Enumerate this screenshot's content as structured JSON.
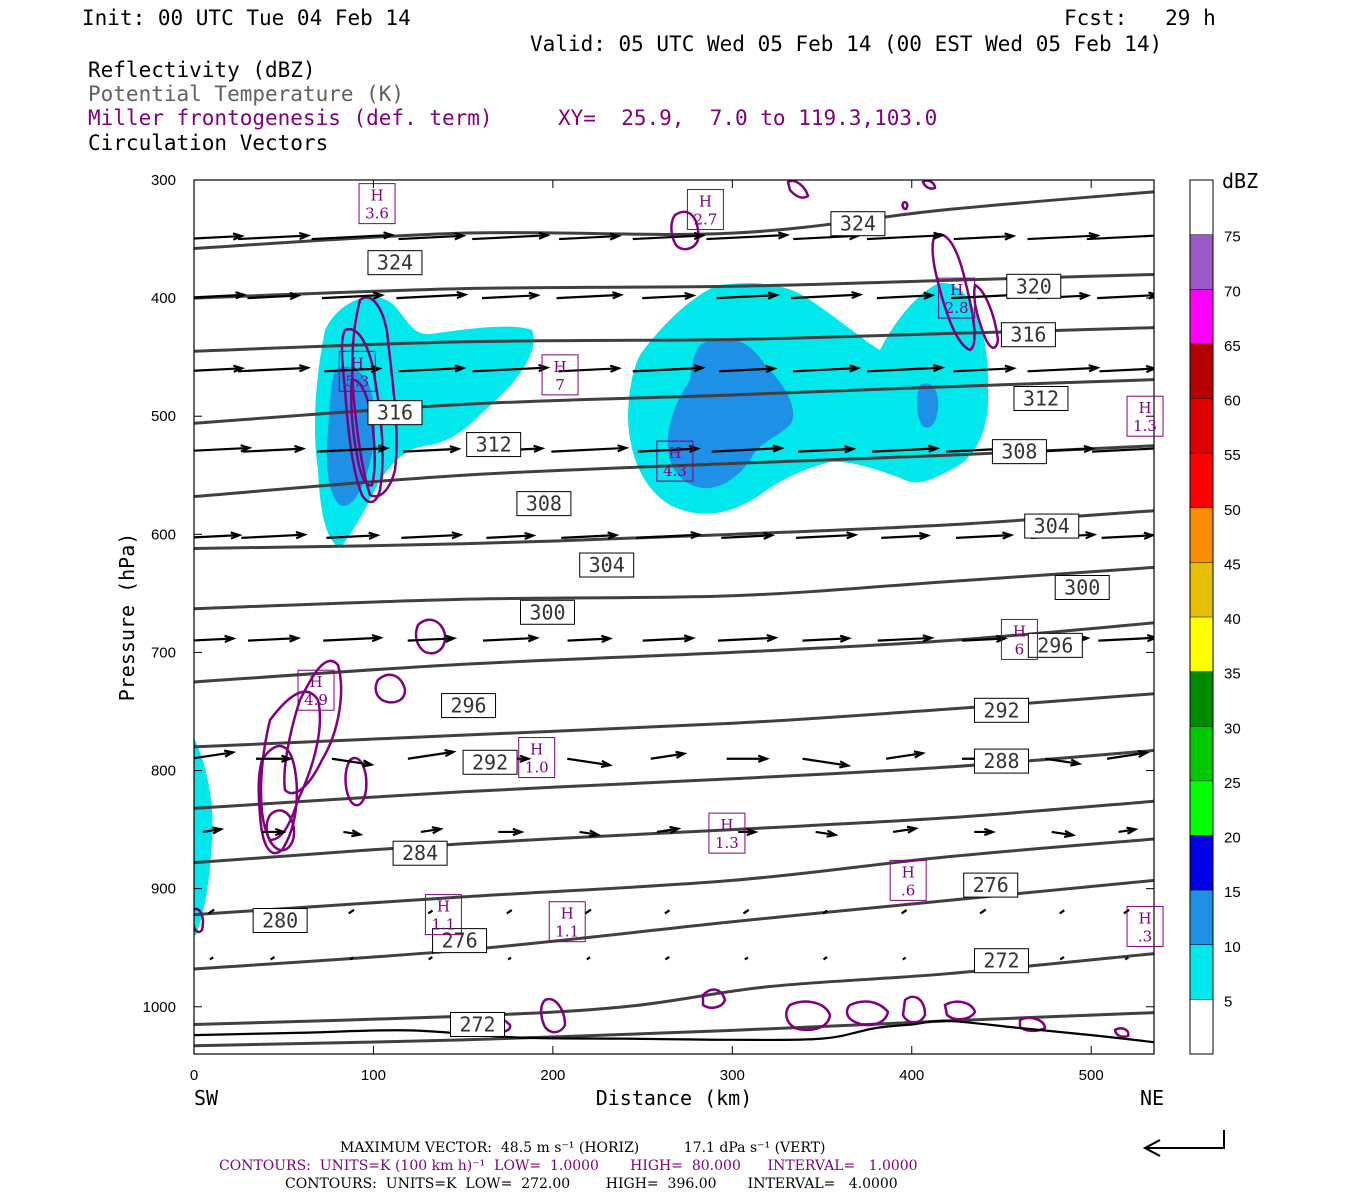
{
  "header": {
    "init": "Init: 00 UTC Tue 04 Feb 14",
    "fcst": "Fcst:   29 h",
    "valid": "Valid: 05 UTC Wed 05 Feb 14 (00 EST Wed 05 Feb 14)",
    "field1": "Reflectivity (dBZ)",
    "field2": "Potential Temperature (K)",
    "field3": "Miller frontogenesis (def. term)",
    "xy": "XY=  25.9,  7.0 to 119.3,103.0",
    "field4": "Circulation Vectors"
  },
  "colors": {
    "theta": "#404040",
    "fronto": "#800080",
    "field2_text": "#606060",
    "refl_5": "#00e8ec",
    "refl_10": "#1e90e6"
  },
  "footer": {
    "maxvec": "MAXIMUM VECTOR:  48.5 m s⁻¹ (HORIZ)          17.1 dPa s⁻¹ (VERT)",
    "contours1": "CONTOURS:  UNITS=K (100 km h)⁻¹  LOW=  1.0000       HIGH=  80.000      INTERVAL=   1.0000",
    "contours2": "CONTOURS:  UNITS=K  LOW=  272.00        HIGH=  396.00       INTERVAL=   4.0000"
  },
  "chart_data": {
    "type": "cross-section",
    "xlabel": "Distance (km)",
    "ylabel": "Pressure (hPa)",
    "xlim": [
      0,
      535
    ],
    "ylim": [
      1040,
      300
    ],
    "xticks": [
      0,
      100,
      200,
      300,
      400,
      500
    ],
    "yticks": [
      300,
      400,
      500,
      600,
      700,
      800,
      900,
      1000
    ],
    "left_end_label": "SW",
    "right_end_label": "NE",
    "colorbar": {
      "units": "dBZ",
      "levels": [
        5,
        10,
        15,
        20,
        25,
        30,
        35,
        40,
        45,
        50,
        55,
        60,
        65,
        70,
        75
      ],
      "colors": [
        "#ffffff",
        "#00e8ec",
        "#1e90e6",
        "#0000e6",
        "#00ff00",
        "#00c800",
        "#008c00",
        "#ffff00",
        "#e6be00",
        "#ff8c00",
        "#ff0000",
        "#dc0000",
        "#b40000",
        "#ff00ff",
        "#9a5ac8",
        "#ffffff"
      ]
    },
    "theta_contours": [
      {
        "value": 272,
        "points": [
          [
            0,
            1033
          ],
          [
            150,
            1028
          ],
          [
            300,
            1020
          ],
          [
            420,
            1012
          ],
          [
            535,
            1005
          ]
        ]
      },
      {
        "value": 272,
        "points": [
          [
            0,
            1015
          ],
          [
            150,
            1008
          ],
          [
            240,
            1000
          ],
          [
            320,
            983
          ],
          [
            420,
            972
          ],
          [
            535,
            955
          ]
        ]
      },
      {
        "value": 276,
        "points": [
          [
            0,
            968
          ],
          [
            150,
            952
          ],
          [
            300,
            928
          ],
          [
            400,
            913
          ],
          [
            535,
            893
          ]
        ]
      },
      {
        "value": 280,
        "points": [
          [
            0,
            922
          ],
          [
            150,
            907
          ],
          [
            300,
            893
          ],
          [
            420,
            873
          ],
          [
            535,
            858
          ]
        ]
      },
      {
        "value": 284,
        "points": [
          [
            0,
            878
          ],
          [
            150,
            862
          ],
          [
            300,
            850
          ],
          [
            420,
            840
          ],
          [
            535,
            826
          ]
        ]
      },
      {
        "value": 288,
        "points": [
          [
            0,
            832
          ],
          [
            150,
            818
          ],
          [
            300,
            807
          ],
          [
            420,
            797
          ],
          [
            535,
            783
          ]
        ]
      },
      {
        "value": 292,
        "points": [
          [
            0,
            780
          ],
          [
            150,
            770
          ],
          [
            300,
            760
          ],
          [
            420,
            748
          ],
          [
            535,
            735
          ]
        ]
      },
      {
        "value": 296,
        "points": [
          [
            0,
            725
          ],
          [
            150,
            710
          ],
          [
            300,
            700
          ],
          [
            420,
            690
          ],
          [
            535,
            675
          ]
        ]
      },
      {
        "value": 300,
        "points": [
          [
            0,
            663
          ],
          [
            150,
            655
          ],
          [
            300,
            652
          ],
          [
            420,
            640
          ],
          [
            535,
            628
          ]
        ]
      },
      {
        "value": 304,
        "points": [
          [
            0,
            612
          ],
          [
            150,
            608
          ],
          [
            300,
            600
          ],
          [
            420,
            592
          ],
          [
            535,
            580
          ]
        ]
      },
      {
        "value": 308,
        "points": [
          [
            0,
            568
          ],
          [
            150,
            550
          ],
          [
            300,
            540
          ],
          [
            420,
            533
          ],
          [
            535,
            525
          ]
        ]
      },
      {
        "value": 312,
        "points": [
          [
            0,
            506
          ],
          [
            150,
            490
          ],
          [
            300,
            482
          ],
          [
            420,
            475
          ],
          [
            535,
            469
          ]
        ]
      },
      {
        "value": 316,
        "points": [
          [
            0,
            445
          ],
          [
            150,
            437
          ],
          [
            300,
            435
          ],
          [
            420,
            430
          ],
          [
            535,
            425
          ]
        ]
      },
      {
        "value": 320,
        "points": [
          [
            0,
            400
          ],
          [
            150,
            392
          ],
          [
            300,
            390
          ],
          [
            420,
            385
          ],
          [
            535,
            380
          ]
        ]
      },
      {
        "value": 324,
        "points": [
          [
            0,
            358
          ],
          [
            150,
            345
          ],
          [
            300,
            345
          ],
          [
            420,
            325
          ],
          [
            535,
            310
          ]
        ]
      }
    ],
    "theta_labels": [
      {
        "text": "324",
        "x": 112,
        "p": 370
      },
      {
        "text": "324",
        "x": 370,
        "p": 337
      },
      {
        "text": "320",
        "x": 468,
        "p": 390
      },
      {
        "text": "316",
        "x": 465,
        "p": 431
      },
      {
        "text": "316",
        "x": 112,
        "p": 497
      },
      {
        "text": "312",
        "x": 472,
        "p": 485
      },
      {
        "text": "312",
        "x": 167,
        "p": 524
      },
      {
        "text": "308",
        "x": 195,
        "p": 574
      },
      {
        "text": "308",
        "x": 460,
        "p": 530
      },
      {
        "text": "304",
        "x": 230,
        "p": 626
      },
      {
        "text": "304",
        "x": 478,
        "p": 593
      },
      {
        "text": "300",
        "x": 197,
        "p": 666
      },
      {
        "text": "300",
        "x": 495,
        "p": 645
      },
      {
        "text": "296",
        "x": 153,
        "p": 745
      },
      {
        "text": "296",
        "x": 480,
        "p": 694
      },
      {
        "text": "292",
        "x": 165,
        "p": 793
      },
      {
        "text": "292",
        "x": 450,
        "p": 749
      },
      {
        "text": "288",
        "x": 450,
        "p": 792
      },
      {
        "text": "284",
        "x": 126,
        "p": 870
      },
      {
        "text": "280",
        "x": 48,
        "p": 927
      },
      {
        "text": "276",
        "x": 148,
        "p": 944
      },
      {
        "text": "276",
        "x": 444,
        "p": 897
      },
      {
        "text": "272",
        "x": 450,
        "p": 961
      },
      {
        "text": "272",
        "x": 158,
        "p": 1015
      }
    ],
    "fronto_maxima": [
      {
        "h": "H",
        "value": "3.6",
        "x": 102,
        "p": 320
      },
      {
        "h": "H",
        "value": "2.7",
        "x": 285,
        "p": 325
      },
      {
        "h": "H",
        "value": "2.8",
        "x": 425,
        "p": 400
      },
      {
        "h": "H",
        "value": "5.3",
        "x": 91,
        "p": 462
      },
      {
        "h": "H",
        "value": "7",
        "x": 204,
        "p": 465
      },
      {
        "h": "H",
        "value": "4.3",
        "x": 268,
        "p": 538
      },
      {
        "h": "H",
        "value": "1.3",
        "x": 530,
        "p": 500
      },
      {
        "h": "H",
        "value": "4.9",
        "x": 68,
        "p": 732
      },
      {
        "h": "H",
        "value": "6",
        "x": 460,
        "p": 689
      },
      {
        "h": "H",
        "value": "1.0",
        "x": 191,
        "p": 789
      },
      {
        "h": "H",
        "value": "1.3",
        "x": 297,
        "p": 853
      },
      {
        "h": "H",
        "value": ".6",
        "x": 398,
        "p": 893
      },
      {
        "h": "H",
        "value": "1.1",
        "x": 139,
        "p": 922
      },
      {
        "h": "H",
        "value": "1.1",
        "x": 208,
        "p": 928
      },
      {
        "h": "H",
        "value": ".3",
        "x": 530,
        "p": 932
      }
    ],
    "vector_levels": [
      350,
      400,
      462,
      530,
      603,
      690,
      790,
      852,
      921,
      960
    ]
  }
}
